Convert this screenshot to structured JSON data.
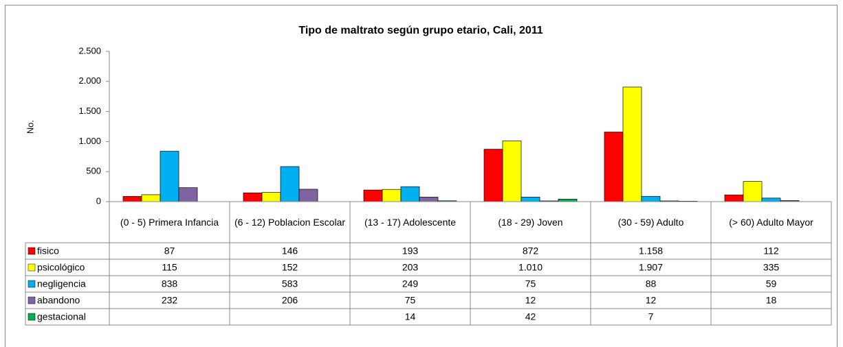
{
  "chart_data": {
    "type": "bar",
    "title": "Tipo de maltrato  según grupo etario, Cali, 2011",
    "ylabel": "No.",
    "categories": [
      "(0 - 5) Primera Infancia",
      "(6 - 12) Poblacion Escolar",
      "(13 - 17) Adolescente",
      "(18 - 29) Joven",
      "(30 - 59) Adulto",
      "(> 60) Adulto Mayor"
    ],
    "series": [
      {
        "name": "fisico",
        "color": "#ff0000",
        "values": [
          87,
          146,
          193,
          872,
          1158,
          112
        ],
        "value_labels": [
          "87",
          "146",
          "193",
          "872",
          "1.158",
          "112"
        ]
      },
      {
        "name": "psicológico",
        "color": "#ffff00",
        "values": [
          115,
          152,
          203,
          1010,
          1907,
          335
        ],
        "value_labels": [
          "115",
          "152",
          "203",
          "1.010",
          "1.907",
          "335"
        ]
      },
      {
        "name": "negligencia",
        "color": "#00b0f0",
        "values": [
          838,
          583,
          249,
          75,
          88,
          59
        ],
        "value_labels": [
          "838",
          "583",
          "249",
          "75",
          "88",
          "59"
        ]
      },
      {
        "name": "abandono",
        "color": "#8064a2",
        "values": [
          232,
          206,
          75,
          12,
          12,
          18
        ],
        "value_labels": [
          "232",
          "206",
          "75",
          "12",
          "12",
          "18"
        ]
      },
      {
        "name": "gestacional",
        "color": "#00b050",
        "values": [
          null,
          null,
          14,
          42,
          7,
          null
        ],
        "value_labels": [
          null,
          null,
          "14",
          "42",
          "7",
          null
        ]
      }
    ],
    "ylim": [
      0,
      2500
    ],
    "yticks": [
      0,
      500,
      {
        "value": 1000,
        "label": "1.000"
      },
      {
        "value": 1500,
        "label": "1.500"
      },
      {
        "value": 2000,
        "label": "2.000"
      },
      {
        "value": 2500,
        "label": "2.500"
      }
    ]
  }
}
